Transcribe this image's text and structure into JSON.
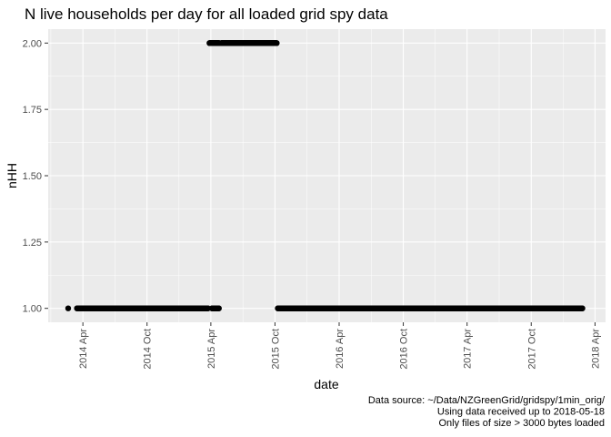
{
  "chart_data": {
    "type": "scatter",
    "title": "N live households per day for all loaded grid spy data",
    "xlabel": "date",
    "ylabel": "nHH",
    "xlim": [
      "2013-12-23",
      "2018-05-01"
    ],
    "ylim": [
      0.9475,
      2.0525
    ],
    "x_ticks": [
      {
        "date": "2014-04-01",
        "label": "2014 Apr"
      },
      {
        "date": "2014-10-01",
        "label": "2014 Oct"
      },
      {
        "date": "2015-04-01",
        "label": "2015 Apr"
      },
      {
        "date": "2015-10-01",
        "label": "2015 Oct"
      },
      {
        "date": "2016-04-01",
        "label": "2016 Apr"
      },
      {
        "date": "2016-10-01",
        "label": "2016 Oct"
      },
      {
        "date": "2017-04-01",
        "label": "2017 Apr"
      },
      {
        "date": "2017-10-01",
        "label": "2017 Oct"
      },
      {
        "date": "2018-04-01",
        "label": "2018 Apr"
      }
    ],
    "y_ticks": [
      1.0,
      1.25,
      1.5,
      1.75,
      2.0
    ],
    "y_tick_labels": [
      "1.00",
      "1.25",
      "1.50",
      "1.75",
      "2.00"
    ],
    "grid": true,
    "series": [
      {
        "segments": [
          {
            "start": "2014-02-18",
            "end": "2014-02-18",
            "value": 1
          },
          {
            "start": "2014-03-15",
            "end": "2015-03-24",
            "value": 1
          },
          {
            "start": "2015-03-28",
            "end": "2015-04-25",
            "value": 2
          },
          {
            "start": "2015-04-04",
            "end": "2015-04-24",
            "value": 1
          },
          {
            "start": "2015-05-01",
            "end": "2015-10-06",
            "value": 2
          },
          {
            "start": "2015-10-09",
            "end": "2018-02-24",
            "value": 1
          }
        ]
      }
    ],
    "caption": [
      "Data source: ~/Data/NZGreenGrid/gridspy/1min_orig/",
      "Using data received up to 2018-05-18",
      "Only files of size > 3000 bytes loaded"
    ]
  },
  "colors": {
    "panel_bg": "#ebebeb",
    "grid_major": "#ffffff",
    "point": "#000000",
    "tick_text": "#4d4d4d"
  }
}
